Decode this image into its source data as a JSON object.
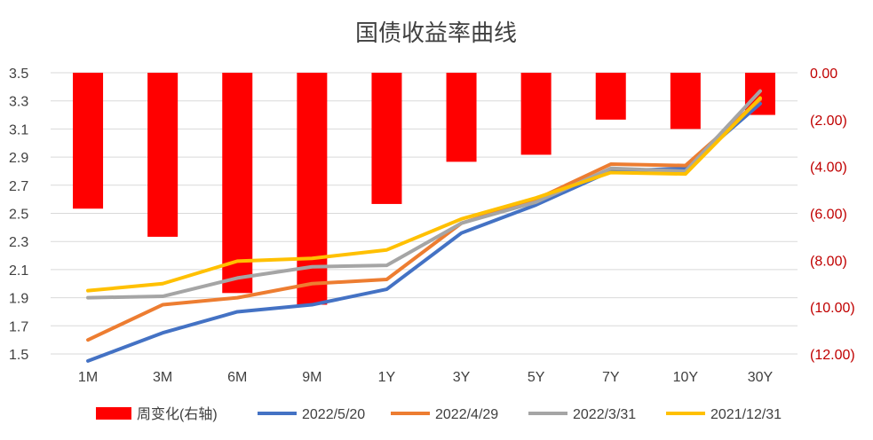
{
  "chart_data": {
    "type": "bar+line",
    "title": "国债收益率曲线",
    "categories": [
      "1M",
      "3M",
      "6M",
      "9M",
      "1Y",
      "3Y",
      "5Y",
      "7Y",
      "10Y",
      "30Y"
    ],
    "y_left": {
      "ylim": [
        1.5,
        3.5
      ],
      "ticks": [
        "3.5",
        "3.3",
        "3.1",
        "2.9",
        "2.7",
        "2.5",
        "2.3",
        "2.1",
        "1.9",
        "1.7",
        "1.5"
      ]
    },
    "y_right": {
      "ylim": [
        -12,
        0
      ],
      "ticks": [
        "0.00",
        "(2.00)",
        "(4.00)",
        "(6.00)",
        "(8.00)",
        "(10.00)",
        "(12.00)"
      ],
      "color": "#c00000"
    },
    "bars": {
      "name": "周变化(右轴)",
      "axis": "right",
      "color": "#ff0000",
      "values": [
        -5.8,
        -7.0,
        -9.4,
        -9.9,
        -5.6,
        -3.8,
        -3.5,
        -2.0,
        -2.4,
        -1.8
      ]
    },
    "series": [
      {
        "name": "2022/5/20",
        "color": "#4472c4",
        "values": [
          1.45,
          1.65,
          1.8,
          1.85,
          1.96,
          2.36,
          2.56,
          2.8,
          2.82,
          3.28
        ]
      },
      {
        "name": "2022/4/29",
        "color": "#ed7d31",
        "values": [
          1.6,
          1.85,
          1.9,
          2.0,
          2.03,
          2.43,
          2.6,
          2.85,
          2.84,
          3.31
        ]
      },
      {
        "name": "2022/3/31",
        "color": "#a5a5a5",
        "values": [
          1.9,
          1.91,
          2.04,
          2.12,
          2.13,
          2.43,
          2.58,
          2.82,
          2.8,
          3.37
        ]
      },
      {
        "name": "2021/12/31",
        "color": "#ffc000",
        "values": [
          1.95,
          2.0,
          2.16,
          2.18,
          2.24,
          2.46,
          2.61,
          2.79,
          2.78,
          3.32
        ]
      }
    ],
    "grid": true,
    "legend_position": "bottom"
  }
}
